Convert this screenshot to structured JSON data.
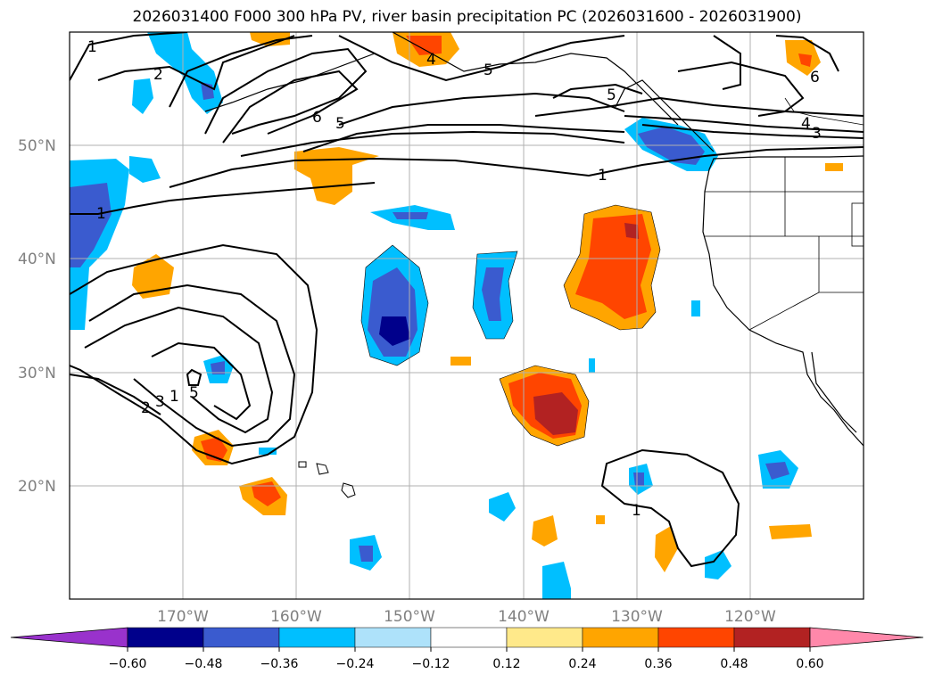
{
  "title": "2026031400 F000 300 hPa PV, river basin precipitation PC (2026031600 - 2026031900)",
  "map": {
    "projection": "lat-lon",
    "lat_range": [
      10,
      60
    ],
    "lon_range": [
      -180,
      -110
    ],
    "lat_ticks": [
      "20°N",
      "30°N",
      "40°N",
      "50°N"
    ],
    "lon_ticks": [
      "170°W",
      "160°W",
      "150°W",
      "140°W",
      "130°W",
      "120°W"
    ],
    "gridlines": true
  },
  "colorbar": {
    "levels": [
      "−0.60",
      "−0.48",
      "−0.36",
      "−0.24",
      "−0.12",
      "0.12",
      "0.24",
      "0.36",
      "0.48",
      "0.60"
    ],
    "colors": [
      "#9932cc",
      "#00008b",
      "#3a5bcf",
      "#00bfff",
      "#aee2fa",
      "#ffffff",
      "#ffe98a",
      "#ffa500",
      "#ff4500",
      "#b22222",
      "#ff88aa"
    ],
    "extend": "both"
  },
  "pv_contour_labels": [
    "1",
    "2",
    "1",
    "5",
    "6",
    "5",
    "4",
    "5",
    "6",
    "4",
    "3",
    "1",
    "1",
    "2",
    "3",
    "5",
    "1"
  ],
  "colors": {
    "grid": "#b0b0b0",
    "contour": "#000000",
    "land": "#ffffff"
  }
}
